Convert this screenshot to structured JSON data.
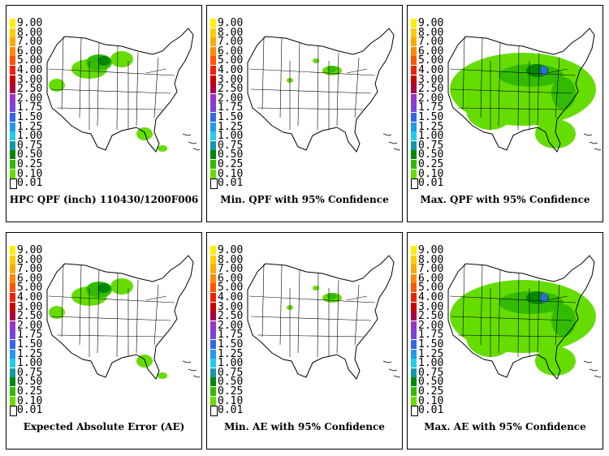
{
  "legend": {
    "labels": [
      "9.00",
      "8.00",
      "7.00",
      "6.00",
      "5.00",
      "4.00",
      "3.00",
      "2.50",
      "2.00",
      "1.75",
      "1.50",
      "1.25",
      "1.00",
      "0.75",
      "0.50",
      "0.25",
      "0.10",
      "0.01"
    ],
    "colors": [
      "#ffee00",
      "#ffcc00",
      "#ffaa00",
      "#ff8800",
      "#ff5500",
      "#ee2200",
      "#cc0000",
      "#aa0044",
      "#9933cc",
      "#7744dd",
      "#3366ee",
      "#2299ee",
      "#22ccee",
      "#1199aa",
      "#008800",
      "#33bb00",
      "#66dd00",
      "#ffffff"
    ]
  },
  "panels": [
    {
      "caption": "HPC QPF (inch) 110430/1200F006",
      "coverage": "low"
    },
    {
      "caption": "Min. QPF with 95% Confidence",
      "coverage": "min"
    },
    {
      "caption": "Max. QPF with 95% Confidence",
      "coverage": "max"
    },
    {
      "caption": "Expected Absolute Error (AE)",
      "coverage": "low"
    },
    {
      "caption": "Min. AE with 95% Confidence",
      "coverage": "min"
    },
    {
      "caption": "Max. AE with 95% Confidence",
      "coverage": "max"
    }
  ]
}
